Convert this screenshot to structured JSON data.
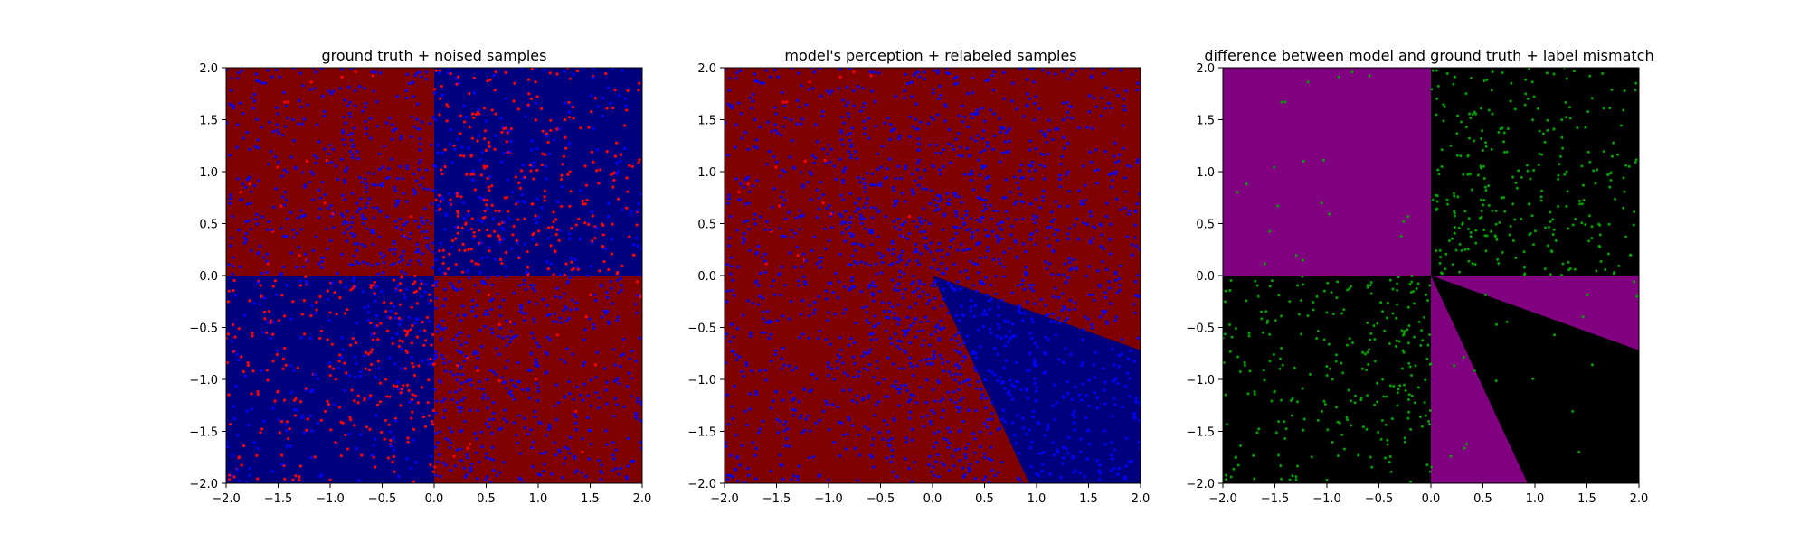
{
  "chart_data": [
    {
      "type": "scatter",
      "title": "ground truth + noised samples",
      "xlim": [
        -2.0,
        2.0
      ],
      "ylim": [
        -2.0,
        2.0
      ],
      "xticks": [
        "−2.0",
        "−1.5",
        "−1.0",
        "−0.5",
        "0.0",
        "0.5",
        "1.0",
        "1.5",
        "2.0"
      ],
      "yticks": [
        "−2.0",
        "−1.5",
        "−1.0",
        "−0.5",
        "0.0",
        "0.5",
        "1.0",
        "1.5",
        "2.0"
      ],
      "background": "ground truth quadrant classes: red where x*y<0, blue where x*y>0",
      "region_colors": {
        "red": "#7f0000",
        "blue": "#00007f"
      },
      "series": [
        {
          "color": "#ff0000",
          "description_points": "red samples mostly in x>0,y>0 and x<0,y<0 quadrants",
          "count_estimate": 500
        },
        {
          "color": "#0000ff",
          "count_estimate": 1500
        }
      ]
    },
    {
      "type": "scatter",
      "title": "model's perception + relabeled samples",
      "xlim": [
        -2.0,
        2.0
      ],
      "ylim": [
        -2.0,
        2.0
      ],
      "xticks": [
        "−2.0",
        "−1.5",
        "−1.0",
        "−0.5",
        "0.0",
        "0.5",
        "1.0",
        "1.5",
        "2.0"
      ],
      "yticks": [
        "−2.0",
        "−1.5",
        "−1.0",
        "−0.5",
        "0.0",
        "0.5",
        "1.0",
        "1.5",
        "2.0"
      ],
      "blue_wedge": {
        "apex": [
          0.0,
          0.0
        ],
        "edge1": [
          0.93,
          -2.0
        ],
        "edge2": [
          2.0,
          -0.72
        ]
      },
      "region_colors": {
        "red": "#7f0000",
        "blue": "#00007f"
      },
      "series": [
        {
          "color": "#ff0000"
        },
        {
          "color": "#0000ff"
        }
      ]
    },
    {
      "type": "scatter",
      "title": "difference between model and ground truth + label mismatch",
      "xlim": [
        -2.0,
        2.0
      ],
      "ylim": [
        -2.0,
        2.0
      ],
      "xticks": [
        "−2.0",
        "−1.5",
        "−1.0",
        "−0.5",
        "0.0",
        "0.5",
        "1.0",
        "1.5",
        "2.0"
      ],
      "yticks": [
        "−2.0",
        "−1.5",
        "−1.0",
        "−0.5",
        "0.0",
        "0.5",
        "1.0",
        "1.5",
        "2.0"
      ],
      "region_colors": {
        "mismatch": "#800080",
        "match": "#000000"
      },
      "series": [
        {
          "color": "#00a000"
        }
      ]
    }
  ]
}
